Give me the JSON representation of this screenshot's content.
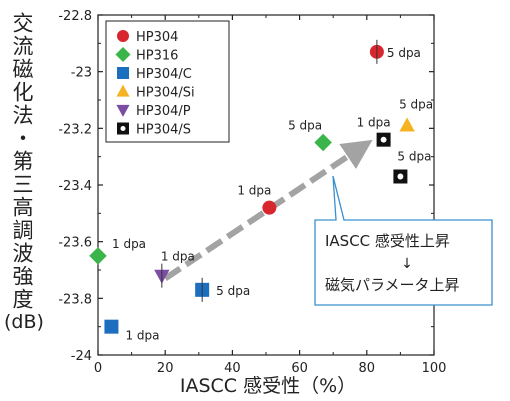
{
  "chart_data": {
    "type": "scatter",
    "xlabel": "IASCC 感受性（%）",
    "ylabel": "交流磁化法・第三高調波強度",
    "ylabel_unit": "(dB)",
    "xlim": [
      0,
      100
    ],
    "ylim": [
      -24,
      -22.8
    ],
    "xticks": [
      "0",
      "20",
      "40",
      "60",
      "80",
      "100"
    ],
    "yticks": [
      "-24",
      "-23.8",
      "-23.6",
      "-23.4",
      "-23.2",
      "-23",
      "-22.8"
    ],
    "series": [
      {
        "name": "HP304",
        "marker": "circle",
        "color": "#d7262e",
        "points": [
          {
            "x": 51,
            "y": -23.48,
            "label": "1 dpa"
          },
          {
            "x": 83,
            "y": -22.93,
            "label": "5 dpa"
          }
        ]
      },
      {
        "name": "HP316",
        "marker": "diamond",
        "color": "#3bb54a",
        "points": [
          {
            "x": 0,
            "y": -23.65,
            "label": "1 dpa"
          },
          {
            "x": 67,
            "y": -23.25,
            "label": "5 dpa"
          }
        ]
      },
      {
        "name": "HP304/C",
        "marker": "square",
        "color": "#1c6fbf",
        "points": [
          {
            "x": 4,
            "y": -23.9,
            "label": "1 dpa"
          },
          {
            "x": 31,
            "y": -23.77,
            "label": "5 dpa"
          }
        ]
      },
      {
        "name": "HP304/Si",
        "marker": "triangle-up",
        "color": "#f5b324",
        "points": [
          {
            "x": 92,
            "y": -23.19,
            "label": "5 dpa"
          }
        ]
      },
      {
        "name": "HP304/P",
        "marker": "triangle-down",
        "color": "#7a4ea3",
        "points": [
          {
            "x": 19,
            "y": -23.72,
            "label": "1 dpa"
          }
        ]
      },
      {
        "name": "HP304/S",
        "marker": "octagon-open",
        "color": "#111111",
        "points": [
          {
            "x": 85,
            "y": -23.24,
            "label": "1 dpa"
          },
          {
            "x": 90,
            "y": -23.37,
            "label": "5 dpa"
          }
        ]
      }
    ],
    "annotation": {
      "line1": "IASCC 感受性上昇",
      "arrow": "↓",
      "line2": "磁気パラメータ上昇"
    },
    "trend_arrow": {
      "from": {
        "x": 20,
        "y": -23.73
      },
      "to": {
        "x": 78,
        "y": -23.27
      }
    },
    "legend_position": "top-left",
    "grid": false
  }
}
